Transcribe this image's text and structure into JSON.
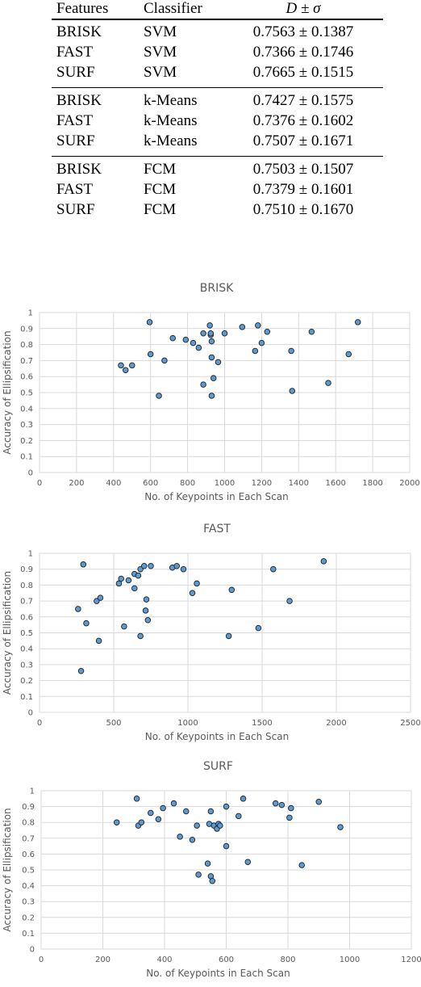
{
  "table": {
    "headers": [
      "Features",
      "Classifier",
      "D ± σ"
    ],
    "groups": [
      {
        "rows": [
          [
            "BRISK",
            "SVM",
            "0.7563 ± 0.1387"
          ],
          [
            "FAST",
            "SVM",
            "0.7366 ± 0.1746"
          ],
          [
            "SURF",
            "SVM",
            "0.7665 ± 0.1515"
          ]
        ]
      },
      {
        "rows": [
          [
            "BRISK",
            "k-Means",
            "0.7427 ± 0.1575"
          ],
          [
            "FAST",
            "k-Means",
            "0.7376 ± 0.1602"
          ],
          [
            "SURF",
            "k-Means",
            "0.7507 ± 0.1671"
          ]
        ]
      },
      {
        "rows": [
          [
            "BRISK",
            "FCM",
            "0.7503 ± 0.1507"
          ],
          [
            "FAST",
            "FCM",
            "0.7379 ± 0.1601"
          ],
          [
            "SURF",
            "FCM",
            "0.7510 ± 0.1670"
          ]
        ]
      }
    ]
  },
  "chart_data": [
    {
      "type": "scatter",
      "title": "BRISK",
      "xlabel": "No. of Keypoints in Each Scan",
      "ylabel": "Accuracy of Ellipsification",
      "xlim": [
        0,
        2000
      ],
      "ylim": [
        0,
        1
      ],
      "xticks": [
        0,
        200,
        400,
        600,
        800,
        1000,
        1200,
        1400,
        1600,
        1800,
        2000
      ],
      "yticks": [
        0,
        0.1,
        0.2,
        0.3,
        0.4,
        0.5,
        0.6,
        0.7,
        0.8,
        0.9,
        1
      ],
      "ytick_labels": [
        "0",
        "0.1",
        "0.2",
        "0.3",
        "0.4",
        "0.5",
        "0.6",
        "0.7",
        "0.8",
        "0.9",
        "1"
      ],
      "grid": true,
      "marker_color": "#5b9bd5",
      "points": [
        {
          "x": 440,
          "y": 0.67
        },
        {
          "x": 465,
          "y": 0.64
        },
        {
          "x": 500,
          "y": 0.67
        },
        {
          "x": 595,
          "y": 0.94
        },
        {
          "x": 600,
          "y": 0.74
        },
        {
          "x": 645,
          "y": 0.48
        },
        {
          "x": 675,
          "y": 0.7
        },
        {
          "x": 720,
          "y": 0.84
        },
        {
          "x": 790,
          "y": 0.83
        },
        {
          "x": 830,
          "y": 0.81
        },
        {
          "x": 860,
          "y": 0.78
        },
        {
          "x": 885,
          "y": 0.87
        },
        {
          "x": 885,
          "y": 0.55
        },
        {
          "x": 920,
          "y": 0.92
        },
        {
          "x": 925,
          "y": 0.86
        },
        {
          "x": 925,
          "y": 0.87
        },
        {
          "x": 930,
          "y": 0.72
        },
        {
          "x": 930,
          "y": 0.82
        },
        {
          "x": 930,
          "y": 0.48
        },
        {
          "x": 940,
          "y": 0.59
        },
        {
          "x": 965,
          "y": 0.69
        },
        {
          "x": 1000,
          "y": 0.87
        },
        {
          "x": 1095,
          "y": 0.91
        },
        {
          "x": 1165,
          "y": 0.76
        },
        {
          "x": 1180,
          "y": 0.92
        },
        {
          "x": 1200,
          "y": 0.81
        },
        {
          "x": 1230,
          "y": 0.88
        },
        {
          "x": 1360,
          "y": 0.76
        },
        {
          "x": 1365,
          "y": 0.51
        },
        {
          "x": 1470,
          "y": 0.88
        },
        {
          "x": 1560,
          "y": 0.56
        },
        {
          "x": 1670,
          "y": 0.74
        },
        {
          "x": 1720,
          "y": 0.94
        }
      ]
    },
    {
      "type": "scatter",
      "title": "FAST",
      "xlabel": "No. of Keypoints in Each Scan",
      "ylabel": "Accuracy of Ellipsification",
      "xlim": [
        0,
        2500
      ],
      "ylim": [
        0,
        1
      ],
      "xticks": [
        0,
        500,
        1000,
        1500,
        2000,
        2500
      ],
      "yticks": [
        0,
        0.1,
        0.2,
        0.3,
        0.4,
        0.5,
        0.6,
        0.7,
        0.8,
        0.9,
        1
      ],
      "ytick_labels": [
        "0",
        "0.1",
        "0.2",
        "0.3",
        "0.4",
        "0.5",
        "0.6",
        "0.7",
        "0.8",
        "0.9",
        "1"
      ],
      "grid": true,
      "marker_color": "#5b9bd5",
      "points": [
        {
          "x": 260,
          "y": 0.65
        },
        {
          "x": 280,
          "y": 0.26
        },
        {
          "x": 295,
          "y": 0.93
        },
        {
          "x": 315,
          "y": 0.56
        },
        {
          "x": 385,
          "y": 0.7
        },
        {
          "x": 400,
          "y": 0.45
        },
        {
          "x": 410,
          "y": 0.72
        },
        {
          "x": 535,
          "y": 0.81
        },
        {
          "x": 550,
          "y": 0.84
        },
        {
          "x": 570,
          "y": 0.54
        },
        {
          "x": 600,
          "y": 0.83
        },
        {
          "x": 640,
          "y": 0.87
        },
        {
          "x": 640,
          "y": 0.78
        },
        {
          "x": 665,
          "y": 0.86
        },
        {
          "x": 680,
          "y": 0.9
        },
        {
          "x": 680,
          "y": 0.48
        },
        {
          "x": 705,
          "y": 0.92
        },
        {
          "x": 715,
          "y": 0.64
        },
        {
          "x": 720,
          "y": 0.71
        },
        {
          "x": 730,
          "y": 0.58
        },
        {
          "x": 750,
          "y": 0.92
        },
        {
          "x": 895,
          "y": 0.91
        },
        {
          "x": 925,
          "y": 0.92
        },
        {
          "x": 970,
          "y": 0.9
        },
        {
          "x": 1030,
          "y": 0.75
        },
        {
          "x": 1060,
          "y": 0.81
        },
        {
          "x": 1275,
          "y": 0.48
        },
        {
          "x": 1295,
          "y": 0.77
        },
        {
          "x": 1475,
          "y": 0.53
        },
        {
          "x": 1575,
          "y": 0.9
        },
        {
          "x": 1685,
          "y": 0.7
        },
        {
          "x": 1915,
          "y": 0.95
        }
      ]
    },
    {
      "type": "scatter",
      "title": "SURF",
      "xlabel": "No. of Keypoints in Each Scan",
      "ylabel": "Accuracy of Ellipsification",
      "xlim": [
        0,
        1200
      ],
      "ylim": [
        0,
        1
      ],
      "xticks": [
        0,
        200,
        400,
        600,
        800,
        1000,
        1200
      ],
      "yticks": [
        0,
        0.1,
        0.2,
        0.3,
        0.4,
        0.5,
        0.6,
        0.7,
        0.8,
        0.9,
        1
      ],
      "ytick_labels": [
        "0",
        "0.1",
        "0.2",
        "0.3",
        "0.4",
        "0.5",
        "0.6",
        "0.7",
        "0.8",
        "0.9",
        "1"
      ],
      "grid": true,
      "marker_color": "#5b9bd5",
      "points": [
        {
          "x": 245,
          "y": 0.8
        },
        {
          "x": 310,
          "y": 0.95
        },
        {
          "x": 315,
          "y": 0.78
        },
        {
          "x": 325,
          "y": 0.8
        },
        {
          "x": 355,
          "y": 0.86
        },
        {
          "x": 380,
          "y": 0.82
        },
        {
          "x": 395,
          "y": 0.89
        },
        {
          "x": 430,
          "y": 0.92
        },
        {
          "x": 450,
          "y": 0.71
        },
        {
          "x": 470,
          "y": 0.87
        },
        {
          "x": 490,
          "y": 0.69
        },
        {
          "x": 505,
          "y": 0.78
        },
        {
          "x": 510,
          "y": 0.47
        },
        {
          "x": 540,
          "y": 0.54
        },
        {
          "x": 545,
          "y": 0.79
        },
        {
          "x": 550,
          "y": 0.46
        },
        {
          "x": 550,
          "y": 0.87
        },
        {
          "x": 555,
          "y": 0.43
        },
        {
          "x": 560,
          "y": 0.78
        },
        {
          "x": 570,
          "y": 0.76
        },
        {
          "x": 575,
          "y": 0.79
        },
        {
          "x": 580,
          "y": 0.78
        },
        {
          "x": 600,
          "y": 0.9
        },
        {
          "x": 600,
          "y": 0.65
        },
        {
          "x": 640,
          "y": 0.84
        },
        {
          "x": 655,
          "y": 0.95
        },
        {
          "x": 670,
          "y": 0.55
        },
        {
          "x": 760,
          "y": 0.92
        },
        {
          "x": 780,
          "y": 0.91
        },
        {
          "x": 805,
          "y": 0.83
        },
        {
          "x": 810,
          "y": 0.89
        },
        {
          "x": 845,
          "y": 0.53
        },
        {
          "x": 900,
          "y": 0.93
        },
        {
          "x": 970,
          "y": 0.77
        }
      ]
    }
  ]
}
